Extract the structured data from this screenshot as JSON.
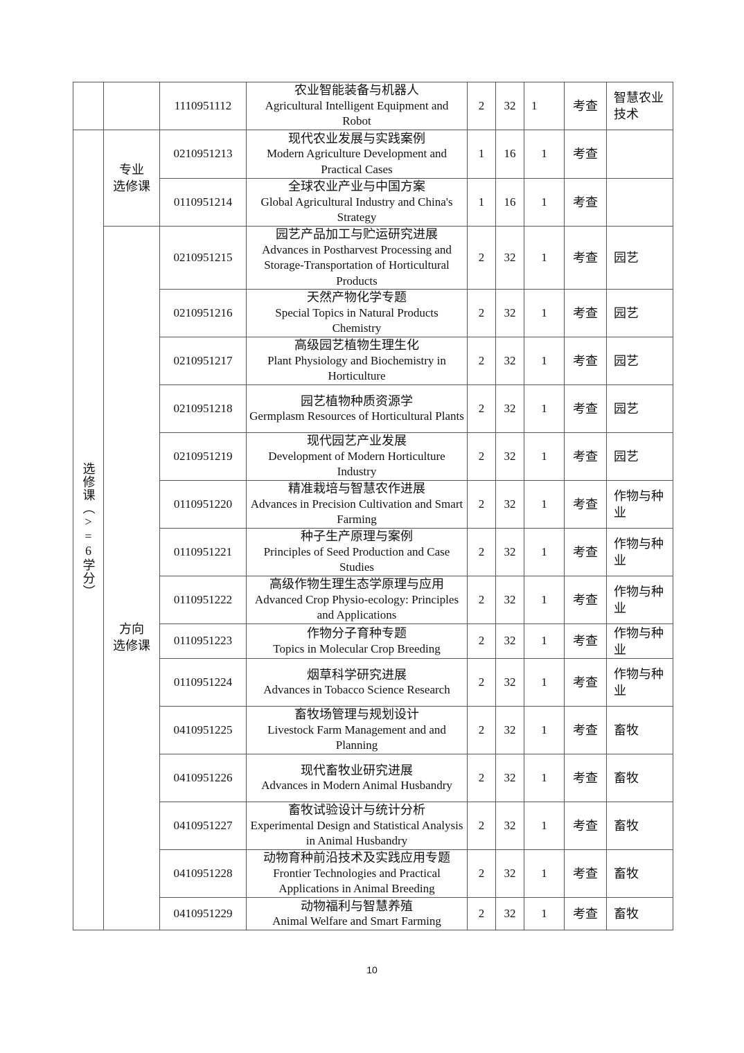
{
  "groups": {
    "outer": "选修课（>=6学分）",
    "major_elective": "专业\n选修课",
    "direction_elective": "方向\n选修课"
  },
  "rows": [
    {
      "code": "1110951112",
      "zh": "农业智能装备与机器人",
      "en": "Agricultural Intelligent Equipment and Robot",
      "credits": "2",
      "hours": "32",
      "semester": "1",
      "assessment": "考查",
      "direction": "智慧农业技术"
    },
    {
      "code": "0210951213",
      "zh": "现代农业发展与实践案例",
      "en": "Modern Agriculture Development and Practical Cases",
      "credits": "1",
      "hours": "16",
      "semester": "1",
      "assessment": "考查",
      "direction": ""
    },
    {
      "code": "0110951214",
      "zh": "全球农业产业与中国方案",
      "en": "Global Agricultural Industry and China's Strategy",
      "credits": "1",
      "hours": "16",
      "semester": "1",
      "assessment": "考查",
      "direction": ""
    },
    {
      "code": "0210951215",
      "zh": "园艺产品加工与贮运研究进展",
      "en": "Advances in Postharvest Processing and Storage-Transportation of Horticultural Products",
      "credits": "2",
      "hours": "32",
      "semester": "1",
      "assessment": "考查",
      "direction": "园艺"
    },
    {
      "code": "0210951216",
      "zh": "天然产物化学专题",
      "en": "Special Topics in Natural Products Chemistry",
      "credits": "2",
      "hours": "32",
      "semester": "1",
      "assessment": "考查",
      "direction": "园艺"
    },
    {
      "code": "0210951217",
      "zh": "高级园艺植物生理生化",
      "en": "Plant Physiology and Biochemistry in Horticulture",
      "credits": "2",
      "hours": "32",
      "semester": "1",
      "assessment": "考查",
      "direction": "园艺"
    },
    {
      "code": "0210951218",
      "zh": "园艺植物种质资源学",
      "en": "Germplasm Resources of Horticultural Plants",
      "credits": "2",
      "hours": "32",
      "semester": "1",
      "assessment": "考查",
      "direction": "园艺"
    },
    {
      "code": "0210951219",
      "zh": "现代园艺产业发展",
      "en": "Development of Modern Horticulture Industry",
      "credits": "2",
      "hours": "32",
      "semester": "1",
      "assessment": "考查",
      "direction": "园艺"
    },
    {
      "code": "0110951220",
      "zh": "精准栽培与智慧农作进展",
      "en": "Advances in Precision Cultivation and Smart Farming",
      "credits": "2",
      "hours": "32",
      "semester": "1",
      "assessment": "考查",
      "direction": "作物与种业"
    },
    {
      "code": "0110951221",
      "zh": "种子生产原理与案例",
      "en": "Principles of Seed Production and Case Studies",
      "credits": "2",
      "hours": "32",
      "semester": "1",
      "assessment": "考查",
      "direction": "作物与种业"
    },
    {
      "code": "0110951222",
      "zh": "高级作物生理生态学原理与应用",
      "en": "Advanced Crop Physio-ecology: Principles and Applications",
      "credits": "2",
      "hours": "32",
      "semester": "1",
      "assessment": "考查",
      "direction": "作物与种业"
    },
    {
      "code": "0110951223",
      "zh": "作物分子育种专题",
      "en": "Topics in Molecular Crop Breeding",
      "credits": "2",
      "hours": "32",
      "semester": "1",
      "assessment": "考查",
      "direction": "作物与种业"
    },
    {
      "code": "0110951224",
      "zh": "烟草科学研究进展",
      "en": "Advances in Tobacco Science Research",
      "credits": "2",
      "hours": "32",
      "semester": "1",
      "assessment": "考查",
      "direction": "作物与种业"
    },
    {
      "code": "0410951225",
      "zh": "畜牧场管理与规划设计",
      "en": "Livestock Farm Management and and Planning",
      "credits": "2",
      "hours": "32",
      "semester": "1",
      "assessment": "考查",
      "direction": "畜牧"
    },
    {
      "code": "0410951226",
      "zh": "现代畜牧业研究进展",
      "en": "Advances in Modern Animal Husbandry",
      "credits": "2",
      "hours": "32",
      "semester": "1",
      "assessment": "考查",
      "direction": "畜牧"
    },
    {
      "code": "0410951227",
      "zh": "畜牧试验设计与统计分析",
      "en": "Experimental Design and Statistical Analysis in Animal Husbandry",
      "credits": "2",
      "hours": "32",
      "semester": "1",
      "assessment": "考查",
      "direction": "畜牧"
    },
    {
      "code": "0410951228",
      "zh": "动物育种前沿技术及实践应用专题",
      "en": "Frontier Technologies and Practical Applications in Animal Breeding",
      "credits": "2",
      "hours": "32",
      "semester": "1",
      "assessment": "考查",
      "direction": "畜牧"
    },
    {
      "code": "0410951229",
      "zh": "动物福利与智慧养殖",
      "en": "Animal Welfare and Smart Farming",
      "credits": "2",
      "hours": "32",
      "semester": "1",
      "assessment": "考查",
      "direction": "畜牧"
    }
  ],
  "page_number": "10"
}
